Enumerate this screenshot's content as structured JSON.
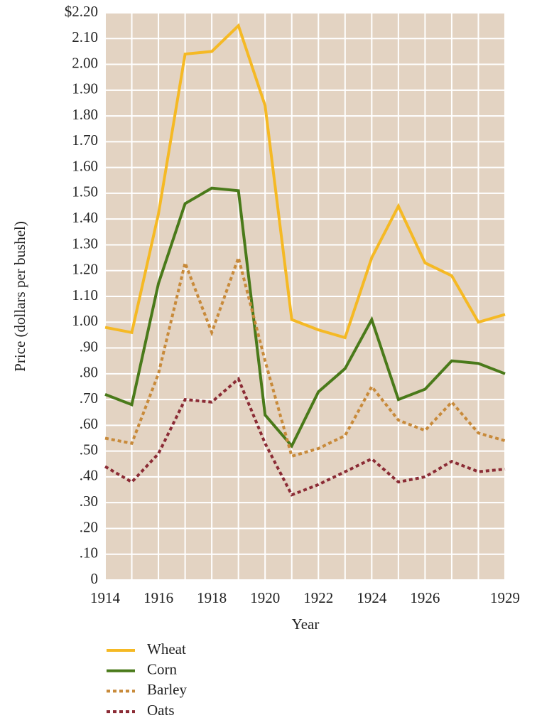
{
  "chart_data": {
    "type": "line",
    "x_label": "Year",
    "y_label": "Price (dollars per bushel)",
    "x": [
      1914,
      1915,
      1916,
      1917,
      1918,
      1919,
      1920,
      1921,
      1922,
      1923,
      1924,
      1925,
      1926,
      1927,
      1928,
      1929
    ],
    "xlim": [
      1914,
      1929
    ],
    "xticks": [
      1914,
      1916,
      1918,
      1920,
      1922,
      1924,
      1926,
      1929
    ],
    "ylim": [
      0,
      2.2
    ],
    "yticks": [
      0,
      {
        "value": 0.1,
        "label": ".10"
      },
      {
        "value": 0.2,
        "label": ".20"
      },
      {
        "value": 0.3,
        "label": ".30"
      },
      {
        "value": 0.4,
        "label": ".40"
      },
      {
        "value": 0.5,
        "label": ".50"
      },
      {
        "value": 0.6,
        "label": ".60"
      },
      {
        "value": 0.7,
        "label": ".70"
      },
      {
        "value": 0.8,
        "label": ".80"
      },
      {
        "value": 0.9,
        "label": ".90"
      },
      {
        "value": 1,
        "label": "1.00"
      },
      {
        "value": 1.1,
        "label": "1.10"
      },
      {
        "value": 1.2,
        "label": "1.20"
      },
      {
        "value": 1.3,
        "label": "1.30"
      },
      {
        "value": 1.4,
        "label": "1.40"
      },
      {
        "value": 1.5,
        "label": "1.50"
      },
      {
        "value": 1.6,
        "label": "1.60"
      },
      {
        "value": 1.7,
        "label": "1.70"
      },
      {
        "value": 1.8,
        "label": "1.80"
      },
      {
        "value": 1.9,
        "label": "1.90"
      },
      {
        "value": 2,
        "label": "2.00"
      },
      {
        "value": 2.1,
        "label": "2.10"
      },
      {
        "value": 2.2,
        "label": "$2.20"
      }
    ],
    "grid": true,
    "background": "#e3d3c2",
    "series": [
      {
        "name": "Wheat",
        "color": "#f5b924",
        "dashed": false,
        "values": [
          0.98,
          0.96,
          1.42,
          2.04,
          2.05,
          2.15,
          1.84,
          1.01,
          0.97,
          0.94,
          1.25,
          1.45,
          1.23,
          1.18,
          1.0,
          1.03
        ]
      },
      {
        "name": "Corn",
        "color": "#4a7a1a",
        "dashed": false,
        "values": [
          0.72,
          0.68,
          1.15,
          1.46,
          1.52,
          1.51,
          0.64,
          0.52,
          0.73,
          0.82,
          1.01,
          0.7,
          0.74,
          0.85,
          0.84,
          0.8
        ]
      },
      {
        "name": "Barley",
        "color": "#c88a3a",
        "dashed": true,
        "values": [
          0.55,
          0.53,
          0.8,
          1.23,
          0.96,
          1.25,
          0.85,
          0.48,
          0.51,
          0.56,
          0.75,
          0.62,
          0.58,
          0.69,
          0.57,
          0.54
        ]
      },
      {
        "name": "Oats",
        "color": "#8b2b35",
        "dashed": true,
        "values": [
          0.44,
          0.38,
          0.49,
          0.7,
          0.69,
          0.78,
          0.53,
          0.33,
          0.37,
          0.42,
          0.47,
          0.38,
          0.4,
          0.46,
          0.42,
          0.43
        ]
      }
    ]
  }
}
